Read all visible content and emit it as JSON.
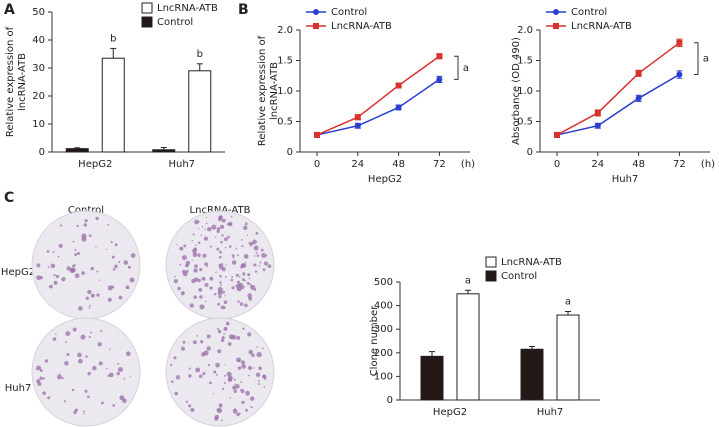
{
  "panels": {
    "labels": [
      "A",
      "B",
      "C"
    ]
  },
  "plates": {
    "columns": [
      "Control",
      "LncRNA-ATB"
    ],
    "rows": [
      "HepG2",
      "Huh7"
    ]
  },
  "chart_data": [
    {
      "type": "bar",
      "ylabel": [
        "Relative expression of",
        "lncRNA-ATB"
      ],
      "categories": [
        "HepG2",
        "Huh7"
      ],
      "series": [
        {
          "name": "LncRNA-ATB",
          "color": "#ffffff",
          "values": [
            33.5,
            29
          ],
          "errors": [
            3.5,
            2.5
          ],
          "annotations": [
            "b",
            "b"
          ]
        },
        {
          "name": "Control",
          "color": "#231815",
          "values": [
            1.2,
            0.8
          ],
          "errors": [
            0.3,
            0.8
          ]
        }
      ],
      "ylim": [
        0,
        50
      ],
      "yticks": [
        0,
        10,
        20,
        30,
        40,
        50
      ]
    },
    {
      "type": "line",
      "ylabel": [
        "Relative expression of",
        "lncRNA-ATB"
      ],
      "xlabel": "HepG2",
      "x_unit": "(h)",
      "x": [
        0,
        24,
        48,
        72
      ],
      "xlim": [
        -10,
        90
      ],
      "xticks": [
        0,
        24,
        48,
        72
      ],
      "series": [
        {
          "name": "Control",
          "color": "#2b3fd0",
          "marker": "circle",
          "values": [
            0.28,
            0.43,
            0.73,
            1.19
          ],
          "errors": [
            0.04,
            0.04,
            0.04,
            0.05
          ]
        },
        {
          "name": "LncRNA-ATB",
          "color": "#d8322f",
          "marker": "square",
          "values": [
            0.28,
            0.57,
            1.09,
            1.57
          ],
          "errors": [
            0.03,
            0.04,
            0.04,
            0.04
          ]
        }
      ],
      "annotation": "a",
      "ylim": [
        0,
        2
      ],
      "yticks": [
        0,
        0.5,
        {
          "value": 1,
          "label": "1.0"
        },
        1.5,
        {
          "value": 2,
          "label": "2.0"
        }
      ]
    },
    {
      "type": "line",
      "ylabel": [
        "Absorbance (OD 490)"
      ],
      "xlabel": "Huh7",
      "x_unit": "(h)",
      "x": [
        0,
        24,
        48,
        72
      ],
      "xlim": [
        -10,
        90
      ],
      "xticks": [
        0,
        24,
        48,
        72
      ],
      "series": [
        {
          "name": "Control",
          "color": "#2b3fd0",
          "marker": "circle",
          "values": [
            0.28,
            0.43,
            0.88,
            1.27
          ],
          "errors": [
            0.04,
            0.04,
            0.05,
            0.06
          ]
        },
        {
          "name": "LncRNA-ATB",
          "color": "#d8322f",
          "marker": "square",
          "values": [
            0.28,
            0.64,
            1.29,
            1.79
          ],
          "errors": [
            0.04,
            0.05,
            0.05,
            0.06
          ]
        }
      ],
      "annotation": "a",
      "ylim": [
        0,
        2
      ],
      "yticks": [
        0,
        0.5,
        {
          "value": 1,
          "label": "1.0"
        },
        1.5,
        {
          "value": 2,
          "label": "2.0"
        }
      ]
    },
    {
      "type": "bar",
      "ylabel": [
        "Clone number"
      ],
      "categories": [
        "HepG2",
        "Huh7"
      ],
      "series": [
        {
          "name": "LncRNA-ATB",
          "color": "#ffffff",
          "values": [
            450,
            360
          ],
          "errors": [
            15,
            15
          ],
          "annotations": [
            "a",
            "a"
          ]
        },
        {
          "name": "Control",
          "color": "#231815",
          "values": [
            185,
            215
          ],
          "errors": [
            20,
            12
          ]
        }
      ],
      "ylim": [
        0,
        500
      ],
      "yticks": [
        0,
        100,
        200,
        300,
        400,
        500
      ]
    }
  ]
}
